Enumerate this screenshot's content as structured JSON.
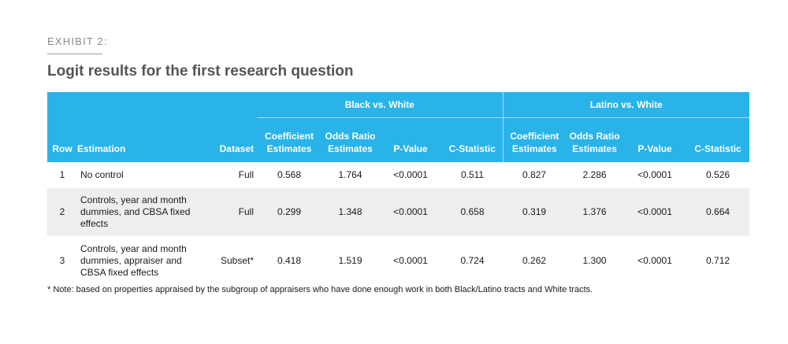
{
  "exhibit_label": "EXHIBIT 2:",
  "title": "Logit results for the first research question",
  "table": {
    "groups": [
      "Black vs. White",
      "Latino vs. White"
    ],
    "columns": {
      "row": "Row",
      "estimation": "Estimation",
      "dataset": "Dataset",
      "coef_line1": "Coefficient",
      "coef_line2": "Estimates",
      "odds_line1": "Odds Ratio",
      "odds_line2": "Estimates",
      "pvalue": "P-Value",
      "cstat": "C-Statistic"
    },
    "rows": [
      {
        "row": "1",
        "estimation": "No control",
        "dataset": "Full",
        "black": {
          "coef": "0.568",
          "odds": "1.764",
          "p": "<0.0001",
          "c": "0.511"
        },
        "latino": {
          "coef": "0.827",
          "odds": "2.286",
          "p": "<0.0001",
          "c": "0.526"
        }
      },
      {
        "row": "2",
        "estimation": "Controls, year and month dummies, and CBSA fixed effects",
        "dataset": "Full",
        "black": {
          "coef": "0.299",
          "odds": "1.348",
          "p": "<0.0001",
          "c": "0.658"
        },
        "latino": {
          "coef": "0.319",
          "odds": "1.376",
          "p": "<0.0001",
          "c": "0.664"
        }
      },
      {
        "row": "3",
        "estimation": "Controls, year and month dummies, appraiser and CBSA fixed effects",
        "dataset": "Subset*",
        "black": {
          "coef": "0.418",
          "odds": "1.519",
          "p": "<0.0001",
          "c": "0.724"
        },
        "latino": {
          "coef": "0.262",
          "odds": "1.300",
          "p": "<0.0001",
          "c": "0.712"
        }
      }
    ]
  },
  "note": "* Note: based on properties appraised by the subgroup of appraisers who have done enough work in both Black/Latino tracts and White tracts."
}
